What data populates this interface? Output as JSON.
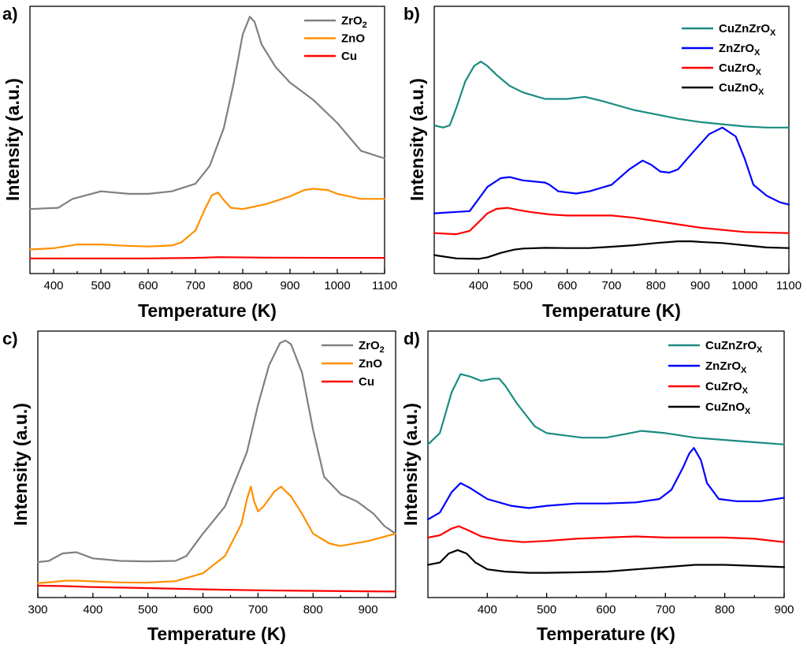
{
  "colors": {
    "ZrO2": "#808080",
    "ZnO": "#ff9000",
    "Cu": "#ff0000",
    "CuZnZrOx": "#1a8c80",
    "ZnZrOx": "#0000ff",
    "CuZrOx": "#ff0000",
    "CuZnOx": "#000000"
  },
  "chart_data": [
    {
      "panel": "a)",
      "type": "line",
      "xlabel": "Temperature (K)",
      "ylabel": "Intensity (a.u.)",
      "xlim": [
        350,
        1100
      ],
      "ylim": [
        0,
        100
      ],
      "xticks": [
        400,
        500,
        600,
        700,
        800,
        900,
        1000,
        1100
      ],
      "legend_position": "top-right",
      "series": [
        {
          "name": "ZrO2",
          "label_main": "ZrO",
          "label_sub": "2",
          "color_key": "ZrO2",
          "x": [
            350,
            410,
            440,
            500,
            560,
            600,
            650,
            700,
            730,
            760,
            780,
            800,
            815,
            825,
            840,
            870,
            900,
            950,
            1000,
            1050,
            1100
          ],
          "y": [
            23,
            23.5,
            27,
            30,
            29,
            29,
            30,
            33,
            40,
            55,
            72,
            92,
            99,
            97,
            88,
            79,
            73,
            66,
            57,
            46,
            43
          ]
        },
        {
          "name": "ZnO",
          "label_main": "ZnO",
          "label_sub": "",
          "color_key": "ZnO",
          "x": [
            350,
            400,
            450,
            500,
            550,
            600,
            650,
            670,
            690,
            700,
            720,
            735,
            748,
            760,
            775,
            800,
            850,
            900,
            930,
            950,
            980,
            1000,
            1050,
            1100
          ],
          "y": [
            7,
            7.5,
            9,
            9,
            8.5,
            8.2,
            8.6,
            9.8,
            13,
            14.5,
            23,
            28.5,
            29.5,
            26.5,
            23.5,
            23,
            25,
            28,
            30.5,
            31,
            30.5,
            29,
            27,
            27
          ]
        },
        {
          "name": "Cu",
          "label_main": "Cu",
          "label_sub": "",
          "color_key": "Cu",
          "x": [
            350,
            500,
            600,
            700,
            750,
            850,
            1000,
            1100
          ],
          "y": [
            3.5,
            3.5,
            3.5,
            3.7,
            4,
            3.8,
            3.7,
            3.7
          ]
        }
      ]
    },
    {
      "panel": "b)",
      "type": "line",
      "xlabel": "Temperature (K)",
      "ylabel": "Intensity (a.u.)",
      "xlim": [
        300,
        1100
      ],
      "ylim": [
        0,
        100
      ],
      "xticks": [
        400,
        500,
        600,
        700,
        800,
        900,
        1000,
        1100
      ],
      "legend_position": "top-right",
      "series": [
        {
          "name": "CuZnZrOx",
          "label_main": "CuZnZrO",
          "label_sub": "X",
          "color_key": "CuZnZrOx",
          "x": [
            300,
            310,
            320,
            335,
            350,
            370,
            390,
            405,
            420,
            440,
            470,
            500,
            550,
            600,
            640,
            680,
            750,
            800,
            850,
            900,
            950,
            1000,
            1050,
            1100
          ],
          "y": [
            62,
            61.5,
            61,
            62,
            70,
            82,
            89,
            91,
            89,
            85,
            80,
            77,
            74,
            74,
            75,
            73,
            69,
            67,
            65,
            63.5,
            62.5,
            61.5,
            61,
            61
          ]
        },
        {
          "name": "ZnZrOx",
          "label_main": "ZnZrO",
          "label_sub": "X",
          "color_key": "ZnZrOx",
          "x": [
            300,
            340,
            380,
            420,
            450,
            470,
            500,
            550,
            560,
            580,
            620,
            650,
            700,
            740,
            770,
            790,
            810,
            830,
            850,
            880,
            920,
            950,
            980,
            1000,
            1020,
            1050,
            1080,
            1100
          ],
          "y": [
            22,
            22.5,
            23,
            34,
            38,
            38.5,
            37,
            36,
            35,
            32,
            31,
            32,
            35,
            42,
            46,
            44,
            41,
            40.5,
            42,
            49,
            58,
            61,
            57,
            47,
            35,
            30,
            27,
            26
          ]
        },
        {
          "name": "CuZrOx",
          "label_main": "CuZrO",
          "label_sub": "X",
          "color_key": "CuZrOx",
          "x": [
            300,
            350,
            380,
            400,
            420,
            440,
            465,
            490,
            520,
            560,
            600,
            650,
            700,
            750,
            800,
            850,
            900,
            1000,
            1100
          ],
          "y": [
            13,
            12.5,
            14,
            18,
            22,
            24,
            24.5,
            23.5,
            22.5,
            21.5,
            21,
            21,
            21,
            20,
            18.5,
            17,
            15.5,
            13.5,
            13
          ]
        },
        {
          "name": "CuZnOx",
          "label_main": "CuZnO",
          "label_sub": "X",
          "color_key": "CuZnOx",
          "x": [
            300,
            350,
            400,
            420,
            450,
            480,
            500,
            550,
            600,
            650,
            700,
            750,
            800,
            850,
            880,
            900,
            950,
            1000,
            1050,
            1100
          ],
          "y": [
            3,
            1.5,
            1.3,
            2,
            4,
            5.5,
            6,
            6.3,
            6.2,
            6.2,
            6.8,
            7.5,
            8.5,
            9.3,
            9.3,
            9,
            8.5,
            7.5,
            6.5,
            6.2
          ]
        }
      ]
    },
    {
      "panel": "c)",
      "type": "line",
      "xlabel": "Temperature (K)",
      "ylabel": "Intensity (a.u.)",
      "xlim": [
        300,
        950
      ],
      "ylim": [
        0,
        100
      ],
      "xticks": [
        300,
        400,
        500,
        600,
        700,
        800,
        900
      ],
      "legend_position": "top-right",
      "series": [
        {
          "name": "ZrO2",
          "label_main": "ZrO",
          "label_sub": "2",
          "color_key": "ZrO2",
          "x": [
            300,
            320,
            345,
            370,
            400,
            450,
            500,
            550,
            570,
            600,
            640,
            680,
            700,
            720,
            740,
            750,
            760,
            780,
            800,
            820,
            850,
            880,
            910,
            930,
            950
          ],
          "y": [
            10.5,
            11,
            14,
            14.5,
            12,
            11,
            10.8,
            11,
            13,
            22,
            33,
            55,
            74,
            90,
            99,
            100,
            98.5,
            87,
            64,
            45,
            38,
            35,
            30,
            25,
            22
          ]
        },
        {
          "name": "ZnO",
          "label_main": "ZnO",
          "label_sub": "",
          "color_key": "ZnO",
          "x": [
            300,
            330,
            350,
            370,
            400,
            450,
            500,
            550,
            600,
            640,
            670,
            680,
            687,
            693,
            700,
            710,
            730,
            742,
            760,
            780,
            800,
            830,
            850,
            900,
            950
          ],
          "y": [
            2,
            2.5,
            3,
            3,
            2.7,
            2.3,
            2.2,
            2.8,
            6,
            13,
            26,
            36,
            41,
            35,
            31,
            33,
            39,
            41,
            37,
            30,
            22,
            18,
            17,
            19,
            22
          ]
        },
        {
          "name": "Cu",
          "label_main": "Cu",
          "label_sub": "",
          "color_key": "Cu",
          "x": [
            300,
            350,
            400,
            500,
            600,
            700,
            800,
            900,
            950
          ],
          "y": [
            1,
            0.8,
            0.4,
            0,
            -0.5,
            -0.9,
            -1.1,
            -1.3,
            -1.4
          ]
        }
      ]
    },
    {
      "panel": "d)",
      "type": "line",
      "xlabel": "Temperature (K)",
      "ylabel": "Intensity (a.u.)",
      "xlim": [
        300,
        900
      ],
      "ylim": [
        0,
        100
      ],
      "xticks": [
        400,
        500,
        600,
        700,
        800,
        900
      ],
      "legend_position": "top-right",
      "series": [
        {
          "name": "CuZnZrOx",
          "label_main": "CuZnZrO",
          "label_sub": "X",
          "color_key": "CuZnZrOx",
          "x": [
            300,
            320,
            340,
            355,
            370,
            390,
            410,
            420,
            430,
            450,
            480,
            500,
            530,
            560,
            600,
            630,
            660,
            700,
            750,
            800,
            850,
            900
          ],
          "y": [
            57,
            62,
            80,
            88,
            87,
            85,
            86,
            86,
            83,
            75,
            65,
            62,
            61,
            60,
            60,
            61.5,
            63,
            62,
            60,
            59,
            58,
            57
          ]
        },
        {
          "name": "ZnZrOx",
          "label_main": "ZnZrO",
          "label_sub": "X",
          "color_key": "ZnZrOx",
          "x": [
            300,
            320,
            340,
            355,
            370,
            400,
            440,
            470,
            500,
            550,
            600,
            650,
            690,
            710,
            730,
            740,
            748,
            760,
            770,
            790,
            820,
            860,
            900
          ],
          "y": [
            24,
            27,
            36,
            40,
            38,
            33,
            30,
            29,
            30,
            31,
            31,
            31.5,
            33,
            37,
            47,
            53,
            55.5,
            50,
            40,
            33,
            32,
            32,
            33.5
          ]
        },
        {
          "name": "CuZrOx",
          "label_main": "CuZrO",
          "label_sub": "X",
          "color_key": "CuZrOx",
          "x": [
            300,
            320,
            340,
            352,
            365,
            390,
            420,
            460,
            500,
            550,
            600,
            650,
            700,
            750,
            800,
            850,
            900
          ],
          "y": [
            16,
            17,
            20,
            21,
            19.5,
            16.5,
            15,
            14,
            14.5,
            15.5,
            16,
            16.5,
            16,
            16,
            16,
            15.5,
            14
          ]
        },
        {
          "name": "CuZnOx",
          "label_main": "CuZnO",
          "label_sub": "X",
          "color_key": "CuZnOx",
          "x": [
            300,
            320,
            335,
            350,
            365,
            380,
            400,
            430,
            470,
            500,
            550,
            600,
            650,
            700,
            750,
            800,
            850,
            900
          ],
          "y": [
            4,
            5,
            9,
            10.5,
            9,
            5,
            2,
            1,
            0.5,
            0.5,
            0.7,
            1,
            2,
            3,
            4,
            4,
            3.5,
            3
          ]
        }
      ]
    }
  ]
}
